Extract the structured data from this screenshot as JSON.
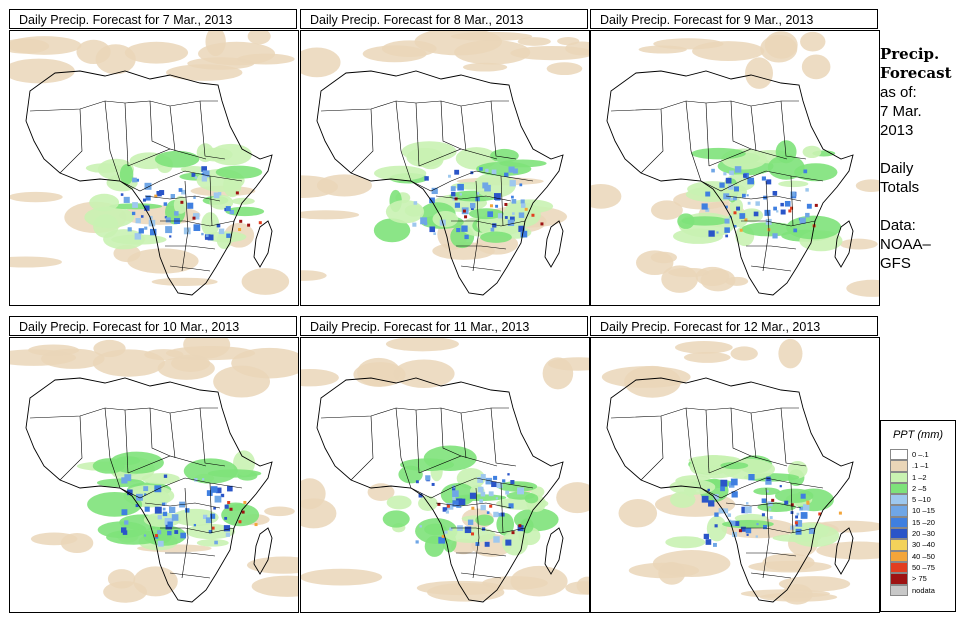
{
  "panels": [
    {
      "title": "Daily Precip. Forecast for  7 Mar., 2013"
    },
    {
      "title": "Daily Precip. Forecast for  8 Mar., 2013"
    },
    {
      "title": "Daily Precip. Forecast for  9 Mar., 2013"
    },
    {
      "title": "Daily Precip. Forecast for  10 Mar., 2013"
    },
    {
      "title": "Daily Precip. Forecast for  11 Mar., 2013"
    },
    {
      "title": "Daily Precip. Forecast for  12 Mar., 2013"
    }
  ],
  "side": {
    "title1": "Precip.",
    "title2": "Forecast",
    "asof": "as of:",
    "date1": "7 Mar.",
    "date2": "2013",
    "daily1": "Daily",
    "daily2": "Totals",
    "data1": "Data:",
    "data2": "NOAA–",
    "data3": "GFS"
  },
  "legend": {
    "title": "PPT (mm)",
    "items": [
      {
        "label": "0 –.1",
        "color": "#ffffff"
      },
      {
        "label": ".1 –1",
        "color": "#ead6b8"
      },
      {
        "label": "1 –2",
        "color": "#c9f2b2"
      },
      {
        "label": "2 –5",
        "color": "#7ee27a"
      },
      {
        "label": "5 –10",
        "color": "#9ec8ee"
      },
      {
        "label": "10 –15",
        "color": "#6fa6e6"
      },
      {
        "label": "15 –20",
        "color": "#3f7fe0"
      },
      {
        "label": "20 –30",
        "color": "#2a55c8"
      },
      {
        "label": "30 –40",
        "color": "#f3d25a"
      },
      {
        "label": "40 –50",
        "color": "#f3a53a"
      },
      {
        "label": "50 –75",
        "color": "#e23d1f"
      },
      {
        "label": "> 75",
        "color": "#9e1212"
      },
      {
        "label": "nodata",
        "color": "#c8c8c8"
      }
    ]
  }
}
